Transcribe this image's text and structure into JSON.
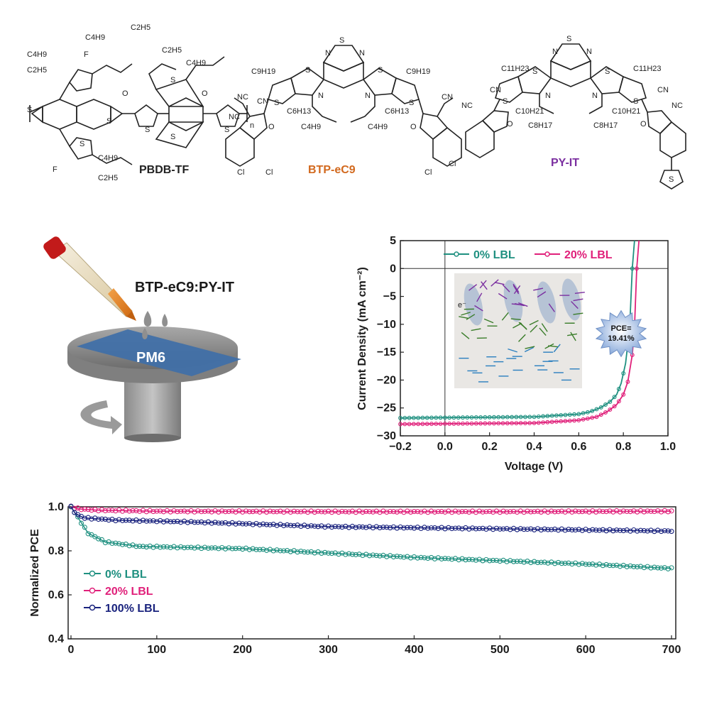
{
  "molecules": [
    {
      "name": "PBDB-TF",
      "color": "#222222",
      "groups": [
        "C4H9",
        "C2H5",
        "F",
        "C4H9",
        "C2H5",
        "C2H5",
        "C4H9",
        "O",
        "O",
        "S",
        "S",
        "S",
        "S",
        "S",
        "S",
        "S",
        "F",
        "C4H9",
        "C2H5",
        "n"
      ]
    },
    {
      "name": "BTP-eC9",
      "color": "#d2691e",
      "groups": [
        "S",
        "N",
        "N",
        "C9H19",
        "C9H19",
        "S",
        "S",
        "S",
        "S",
        "N",
        "N",
        "C6H13",
        "C6H13",
        "C4H9",
        "C4H9",
        "NC",
        "CN",
        "NC",
        "CN",
        "O",
        "O",
        "Cl",
        "Cl",
        "Cl",
        "Cl"
      ]
    },
    {
      "name": "PY-IT",
      "color": "#7b2fa0",
      "groups": [
        "S",
        "N",
        "N",
        "C11H23",
        "C11H23",
        "S",
        "S",
        "S",
        "S",
        "N",
        "N",
        "C10H21",
        "C10H21",
        "C8H17",
        "C8H17",
        "CN",
        "NC",
        "CN",
        "NC",
        "O",
        "O",
        "S"
      ]
    }
  ],
  "process": {
    "blend_label": "BTP-eC9:PY-IT",
    "substrate_label": "PM6"
  },
  "inset": {
    "pce_label": "PCE=",
    "pce_value": "19.41%",
    "electron_label": "e⁻"
  },
  "chart_data": [
    {
      "type": "line",
      "title": "",
      "xlabel": "Voltage (V)",
      "ylabel": "Current Density (mA cm⁻²)",
      "xlim": [
        -0.2,
        1.0
      ],
      "ylim": [
        -30,
        5
      ],
      "xticks": [
        -0.2,
        0.0,
        0.2,
        0.4,
        0.6,
        0.8,
        1.0
      ],
      "xtick_labels": [
        "−0.2",
        "0.0",
        "0.2",
        "0.4",
        "0.6",
        "0.8",
        "1.0"
      ],
      "yticks": [
        5,
        0,
        -5,
        -10,
        -15,
        -20,
        -25,
        -30
      ],
      "ytick_labels": [
        "5",
        "0",
        "−5",
        "−10",
        "−15",
        "−20",
        "−25",
        "−30"
      ],
      "legend_position": "top",
      "series": [
        {
          "name": "0% LBL",
          "color": "#1f9080",
          "jsc": -26.8,
          "voc": 0.84,
          "points": [
            [
              -0.2,
              -26.8
            ],
            [
              0.4,
              -26.6
            ],
            [
              0.6,
              -26.1
            ],
            [
              0.65,
              -25.7
            ],
            [
              0.7,
              -24.9
            ],
            [
              0.74,
              -23.9
            ],
            [
              0.77,
              -22.6
            ],
            [
              0.79,
              -20.6
            ],
            [
              0.81,
              -17
            ],
            [
              0.82,
              -13.5
            ],
            [
              0.83,
              -9
            ],
            [
              0.84,
              0
            ],
            [
              0.85,
              5
            ]
          ]
        },
        {
          "name": "20% LBL",
          "color": "#e0207a",
          "jsc": -27.9,
          "voc": 0.86,
          "points": [
            [
              -0.2,
              -27.9
            ],
            [
              0.4,
              -27.7
            ],
            [
              0.6,
              -27.2
            ],
            [
              0.68,
              -26.6
            ],
            [
              0.73,
              -25.6
            ],
            [
              0.77,
              -24.4
            ],
            [
              0.8,
              -22.6
            ],
            [
              0.82,
              -20.3
            ],
            [
              0.84,
              -15.5
            ],
            [
              0.85,
              -10.5
            ],
            [
              0.86,
              0
            ],
            [
              0.87,
              5
            ]
          ]
        }
      ]
    },
    {
      "type": "line",
      "title": "",
      "xlabel": "",
      "ylabel": "Normalized PCE",
      "xlim": [
        0,
        700
      ],
      "ylim": [
        0.4,
        1.0
      ],
      "xticks": [
        0,
        100,
        200,
        300,
        400,
        500,
        600,
        700
      ],
      "xtick_labels": [
        "0",
        "100",
        "200",
        "300",
        "400",
        "500",
        "600",
        "700"
      ],
      "yticks": [
        1.0,
        0.8,
        0.6,
        0.4
      ],
      "ytick_labels": [
        "1.0",
        "0.8",
        "0.6",
        "0.4"
      ],
      "legend_position": "bottom-left",
      "series": [
        {
          "name": "0% LBL",
          "color": "#1f9080",
          "points": [
            [
              0,
              1.0
            ],
            [
              10,
              0.94
            ],
            [
              20,
              0.88
            ],
            [
              40,
              0.84
            ],
            [
              80,
              0.82
            ],
            [
              200,
              0.81
            ],
            [
              400,
              0.77
            ],
            [
              600,
              0.74
            ],
            [
              700,
              0.72
            ]
          ]
        },
        {
          "name": "20% LBL",
          "color": "#e0207a",
          "points": [
            [
              0,
              1.0
            ],
            [
              10,
              0.99
            ],
            [
              30,
              0.985
            ],
            [
              100,
              0.98
            ],
            [
              300,
              0.978
            ],
            [
              500,
              0.978
            ],
            [
              700,
              0.98
            ]
          ]
        },
        {
          "name": "100% LBL",
          "color": "#1a237e",
          "points": [
            [
              0,
              1.0
            ],
            [
              5,
              0.97
            ],
            [
              15,
              0.95
            ],
            [
              50,
              0.94
            ],
            [
              150,
              0.93
            ],
            [
              300,
              0.91
            ],
            [
              500,
              0.9
            ],
            [
              700,
              0.89
            ]
          ]
        }
      ]
    }
  ]
}
